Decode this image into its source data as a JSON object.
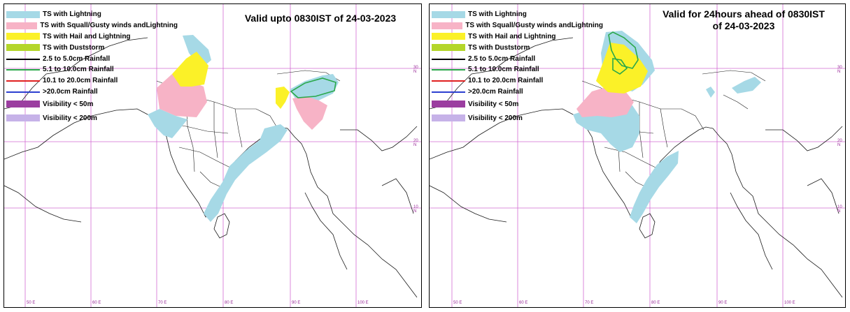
{
  "colors": {
    "ts_lightning": "#a6d9e6",
    "ts_squall": "#f7b3c6",
    "ts_hail": "#fbf128",
    "ts_duststorm": "#b4d62a",
    "rain_25_50": "#000000",
    "rain_51_100": "#2aa84a",
    "rain_101_200": "#e02020",
    "rain_gt_20": "#2c3fd0",
    "vis_50": "#9b3ea0",
    "vis_200": "#c6b2e8",
    "grid": "#d36bd3",
    "boundary": "#1a1a1a"
  },
  "legend": [
    {
      "key": "ts_lightning",
      "type": "fill",
      "label": "TS with Lightning"
    },
    {
      "key": "ts_squall",
      "type": "fill",
      "label": "TS with Squall/Gusty winds andLightning"
    },
    {
      "key": "ts_hail",
      "type": "fill",
      "label": "TS with Hail and Lightning"
    },
    {
      "key": "ts_duststorm",
      "type": "fill",
      "label": "TS with Duststorm"
    },
    {
      "key": "rain_25_50",
      "type": "line",
      "label": "2.5 to 5.0cm Rainfall"
    },
    {
      "key": "rain_51_100",
      "type": "line",
      "label": "5.1 to 10.0cm Rainfall"
    },
    {
      "key": "rain_101_200",
      "type": "line",
      "label": "10.1 to 20.0cm Rainfall"
    },
    {
      "key": "rain_gt_20",
      "type": "line",
      "label": ">20.0cm Rainfall"
    },
    {
      "key": "vis_50",
      "type": "fill",
      "label": "Visibility < 50m"
    },
    {
      "key": "vis_200",
      "type": "fill",
      "label": "Visibility < 200m"
    }
  ],
  "maps": [
    {
      "title_line1": "Valid upto 0830IST of 24-03-2023",
      "title_line2": "",
      "legend_label_overrides": {}
    },
    {
      "title_line1": "Valid for 24hours ahead of 0830IST",
      "title_line2": "of 24-03-2023",
      "legend_label_overrides": {}
    }
  ],
  "grid_labels": {
    "lat": [
      "30 N",
      "20 N",
      "10 N"
    ],
    "lon": [
      "50 E",
      "60 E",
      "70 E",
      "80 E",
      "90 E",
      "100 E"
    ]
  }
}
